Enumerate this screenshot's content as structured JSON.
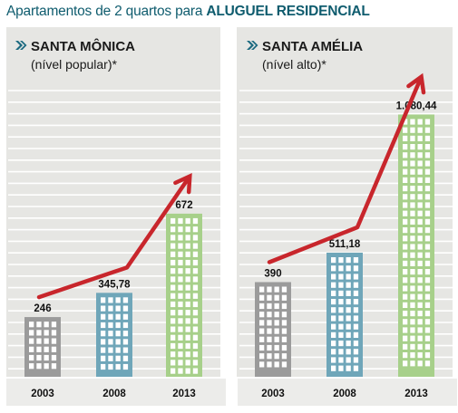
{
  "header": {
    "title_prefix": "Apartamentos de 2 quartos para",
    "title_emphasis": "ALUGUEL RESIDENCIAL"
  },
  "colors": {
    "title": "#0f5c6e",
    "bullet_icon": "#1c6a80",
    "column_band": "#e6e6e3",
    "gridline": "#ffffff",
    "footer_band": "#ececea",
    "bar_2003": "#9b9b9b",
    "bar_2008": "#6fa6b9",
    "bar_2013": "#a7d08a",
    "trend_arrow": "#c8262c"
  },
  "chart_data": [
    {
      "type": "bar",
      "title": "SANTA MÔNICA",
      "subtitle": "(nível popular)*",
      "categories": [
        "2003",
        "2008",
        "2013"
      ],
      "values": [
        246,
        345.78,
        672
      ],
      "value_labels": [
        "246",
        "345,78",
        "672"
      ],
      "ylim": [
        0,
        1200
      ],
      "grid": true,
      "trend_arrow": true,
      "icon": "bullet-arrow-icon"
    },
    {
      "type": "bar",
      "title": "SANTA AMÉLIA",
      "subtitle": "(nível alto)*",
      "categories": [
        "2003",
        "2008",
        "2013"
      ],
      "values": [
        390,
        511.18,
        1080.44
      ],
      "value_labels": [
        "390",
        "511,18",
        "1.080,44"
      ],
      "ylim": [
        0,
        1200
      ],
      "grid": true,
      "trend_arrow": true,
      "icon": "bullet-arrow-icon"
    }
  ]
}
